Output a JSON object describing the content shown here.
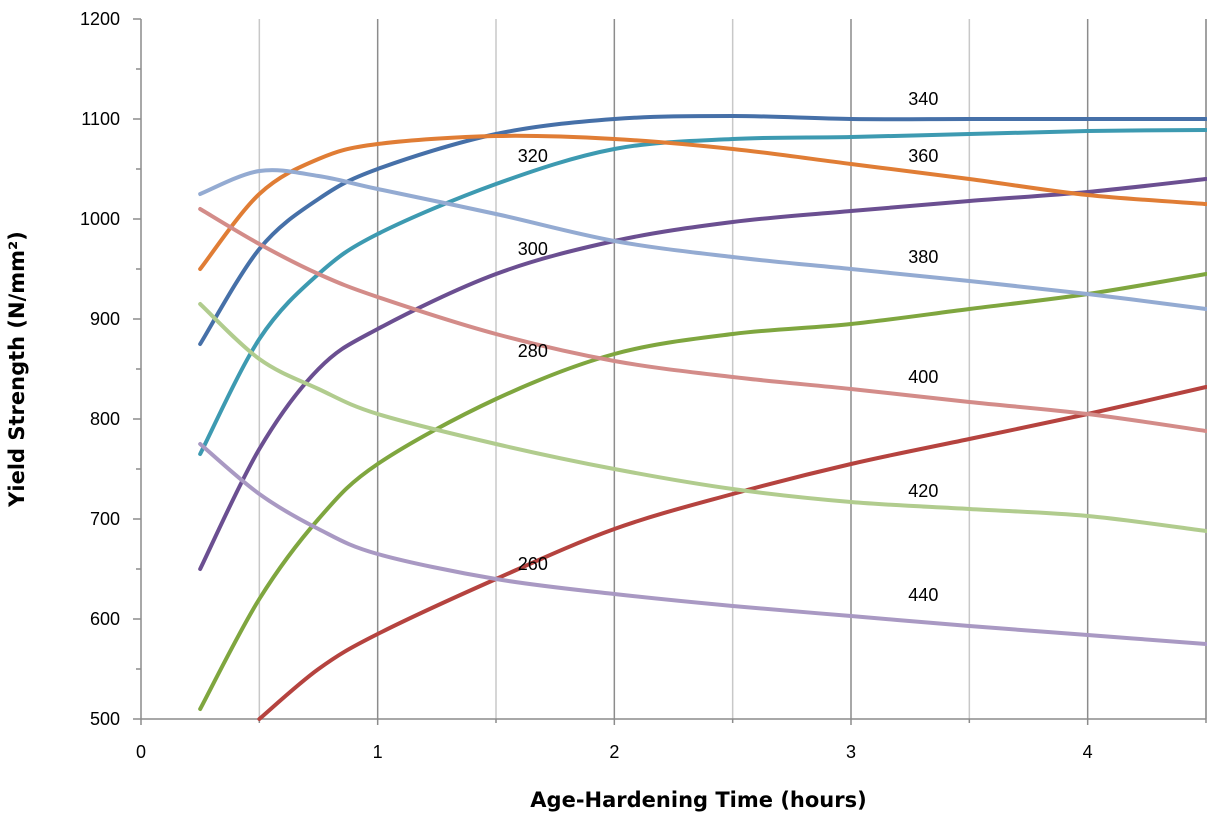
{
  "chart_data": {
    "type": "line",
    "title": "",
    "xlabel": "Age-Hardening Time (hours)",
    "ylabel": "Yield Strength (N/mm²)",
    "xlim": [
      0,
      4.5
    ],
    "ylim": [
      500,
      1200
    ],
    "x_ticks": [
      0,
      1,
      2,
      3,
      4
    ],
    "x_tick_labels": [
      "0",
      "1",
      "2",
      "3",
      "4"
    ],
    "y_ticks": [
      500,
      600,
      700,
      800,
      900,
      1000,
      1100,
      1200
    ],
    "y_tick_labels": [
      "500",
      "600",
      "700",
      "800",
      "900",
      "1000",
      "1100",
      "1200"
    ],
    "grid": true,
    "legend": "none (series labeled inline)",
    "series": [
      {
        "name": "260",
        "color": "#b5433f",
        "label_at": [
          1.55,
          655
        ],
        "x": [
          0.5,
          0.75,
          1,
          1.5,
          2,
          2.5,
          3,
          3.5,
          4,
          4.5
        ],
        "y": [
          500,
          550,
          585,
          640,
          690,
          725,
          755,
          780,
          805,
          832
        ]
      },
      {
        "name": "280",
        "color": "#7fa63f",
        "label_at": [
          1.55,
          868
        ],
        "x": [
          0.25,
          0.5,
          0.75,
          1,
          1.5,
          2,
          2.5,
          3,
          3.5,
          4,
          4.5
        ],
        "y": [
          510,
          620,
          700,
          755,
          820,
          865,
          885,
          895,
          910,
          925,
          945
        ]
      },
      {
        "name": "300",
        "color": "#6b4f91",
        "label_at": [
          1.55,
          970
        ],
        "x": [
          0.25,
          0.5,
          0.75,
          1,
          1.5,
          2,
          2.5,
          3,
          3.5,
          4,
          4.5
        ],
        "y": [
          650,
          770,
          850,
          890,
          945,
          978,
          997,
          1008,
          1018,
          1027,
          1040
        ]
      },
      {
        "name": "320",
        "color": "#3d9ab1",
        "label_at": [
          1.55,
          1063
        ],
        "x": [
          0.25,
          0.5,
          0.75,
          1,
          1.5,
          2,
          2.5,
          3,
          3.5,
          4,
          4.5
        ],
        "y": [
          765,
          880,
          945,
          985,
          1035,
          1070,
          1080,
          1082,
          1085,
          1088,
          1089
        ]
      },
      {
        "name": "340",
        "color": "#4670a8",
        "label_at": [
          3.2,
          1120
        ],
        "x": [
          0.25,
          0.5,
          0.75,
          1,
          1.5,
          2,
          2.5,
          3,
          3.5,
          4,
          4.5
        ],
        "y": [
          875,
          970,
          1020,
          1050,
          1085,
          1100,
          1103,
          1100,
          1100,
          1100,
          1100
        ]
      },
      {
        "name": "360",
        "color": "#e07d35",
        "label_at": [
          3.2,
          1063
        ],
        "x": [
          0.25,
          0.5,
          0.75,
          1,
          1.5,
          2,
          2.5,
          3,
          3.5,
          4,
          4.5
        ],
        "y": [
          950,
          1025,
          1060,
          1075,
          1083,
          1080,
          1070,
          1055,
          1040,
          1024,
          1015
        ]
      },
      {
        "name": "380",
        "color": "#94abd2",
        "label_at": [
          3.2,
          962
        ],
        "x": [
          0.25,
          0.5,
          0.75,
          1,
          1.5,
          2,
          2.5,
          3,
          3.5,
          4,
          4.5
        ],
        "y": [
          1025,
          1048,
          1043,
          1030,
          1005,
          978,
          962,
          950,
          938,
          925,
          910
        ]
      },
      {
        "name": "400",
        "color": "#d38c89",
        "label_at": [
          3.2,
          842
        ],
        "x": [
          0.25,
          0.5,
          0.75,
          1,
          1.5,
          2,
          2.5,
          3,
          3.5,
          4,
          4.5
        ],
        "y": [
          1010,
          975,
          945,
          922,
          885,
          858,
          842,
          830,
          817,
          805,
          788
        ]
      },
      {
        "name": "420",
        "color": "#b1cc8e",
        "label_at": [
          3.2,
          728
        ],
        "x": [
          0.25,
          0.5,
          0.75,
          1,
          1.5,
          2,
          2.5,
          3,
          3.5,
          4,
          4.5
        ],
        "y": [
          915,
          860,
          830,
          805,
          775,
          750,
          730,
          717,
          710,
          703,
          688
        ]
      },
      {
        "name": "440",
        "color": "#a999c3",
        "label_at": [
          3.2,
          624
        ],
        "x": [
          0.25,
          0.5,
          0.75,
          1,
          1.5,
          2,
          2.5,
          3,
          3.5,
          4,
          4.5
        ],
        "y": [
          775,
          725,
          690,
          665,
          640,
          625,
          613,
          603,
          593,
          584,
          575
        ]
      }
    ]
  }
}
